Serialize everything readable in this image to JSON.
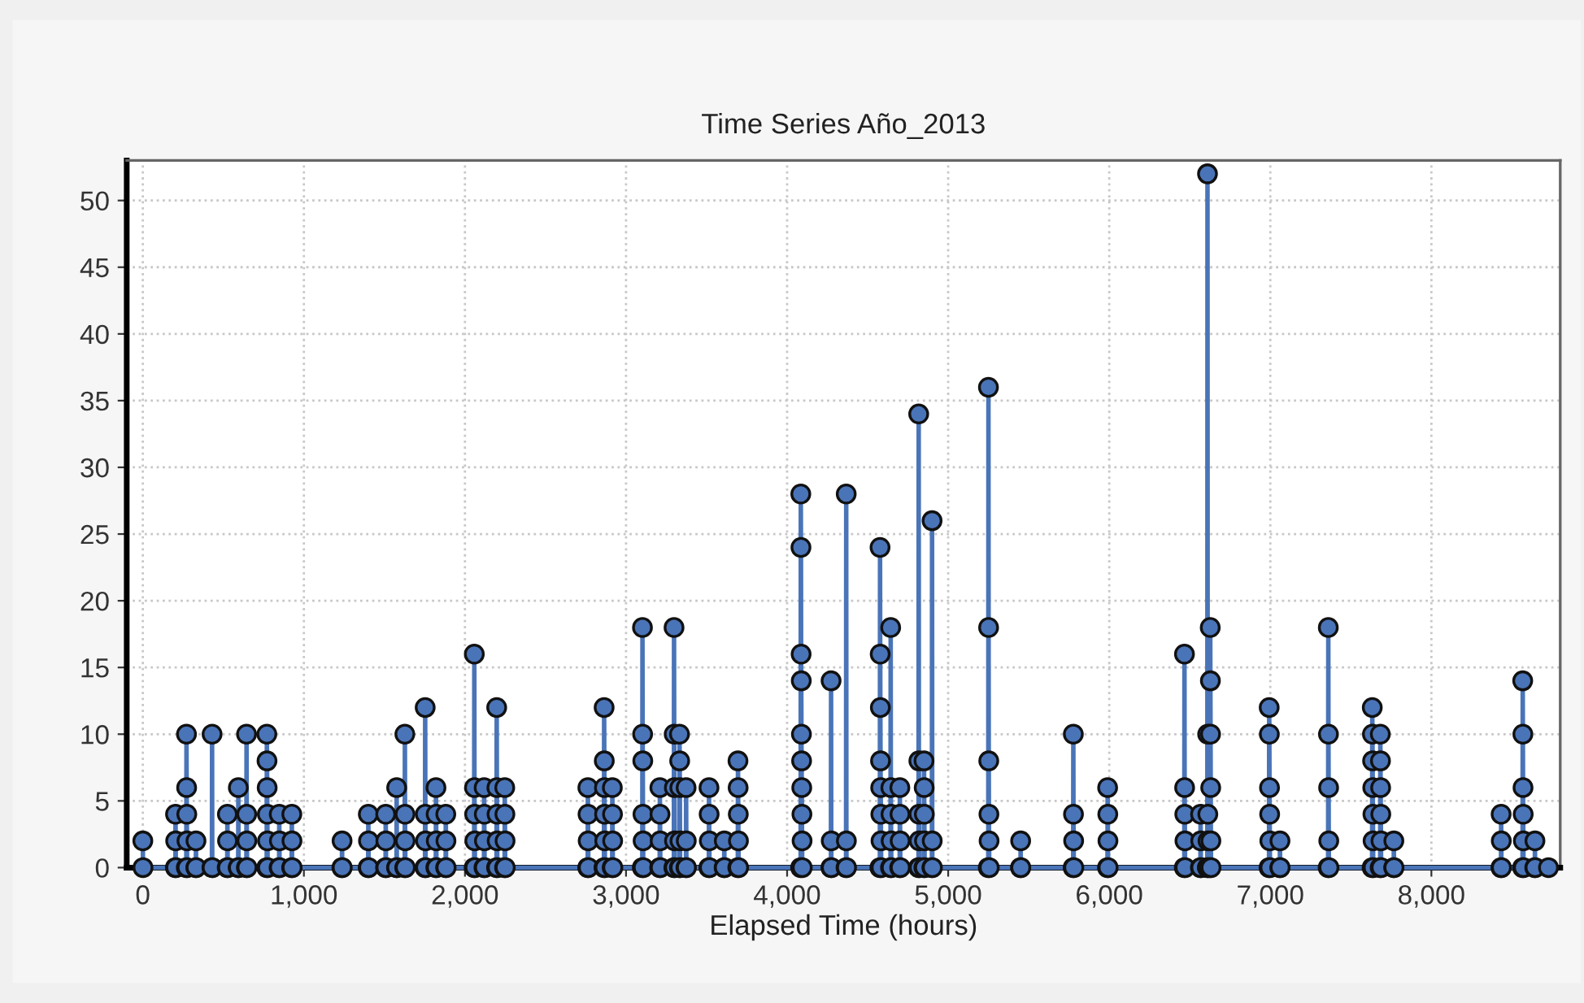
{
  "chart_data": {
    "type": "line",
    "title": "Time Series Año_2013",
    "xlabel": "Elapsed Time (hours)",
    "xlim": [
      -100,
      8800
    ],
    "ylim": [
      0,
      53
    ],
    "xticks": [
      0,
      {
        "value": 1000,
        "label": "1,000"
      },
      {
        "value": 2000,
        "label": "2,000"
      },
      {
        "value": 3000,
        "label": "3,000"
      },
      {
        "value": 4000,
        "label": "4,000"
      },
      {
        "value": 5000,
        "label": "5,000"
      },
      {
        "value": 6000,
        "label": "6,000"
      },
      {
        "value": 7000,
        "label": "7,000"
      },
      {
        "value": 8000,
        "label": "8,000"
      }
    ],
    "yticks": [
      0,
      5,
      10,
      15,
      20,
      25,
      30,
      35,
      40,
      45,
      50
    ],
    "grid": true,
    "marker": "circle",
    "line_style": "solid",
    "series": [
      {
        "color": "#4a74b8",
        "x": [
          0,
          1,
          202,
          203,
          204,
          205,
          270,
          271,
          272,
          273,
          274,
          275,
          329,
          330,
          331,
          429,
          430,
          431,
          524,
          525,
          526,
          527,
          592,
          593,
          594,
          643,
          644,
          645,
          646,
          647,
          769,
          770,
          771,
          772,
          773,
          774,
          775,
          846,
          847,
          848,
          849,
          924,
          925,
          926,
          927,
          1236,
          1237,
          1238,
          1399,
          1400,
          1401,
          1402,
          1507,
          1508,
          1509,
          1510,
          1575,
          1576,
          1577,
          1626,
          1627,
          1628,
          1629,
          1630,
          1752,
          1753,
          1754,
          1755,
          1756,
          1819,
          1820,
          1821,
          1822,
          1823,
          1880,
          1881,
          1882,
          1883,
          2057,
          2058,
          2059,
          2060,
          2061,
          2062,
          2118,
          2119,
          2120,
          2121,
          2122,
          2196,
          2197,
          2198,
          2199,
          2200,
          2201,
          2246,
          2247,
          2248,
          2249,
          2250,
          2762,
          2763,
          2764,
          2765,
          2766,
          2863,
          2864,
          2865,
          2866,
          2867,
          2868,
          2869,
          2914,
          2915,
          2916,
          2917,
          2918,
          3101,
          3102,
          3103,
          3104,
          3105,
          3106,
          3107,
          3209,
          3210,
          3211,
          3212,
          3213,
          3297,
          3298,
          3299,
          3300,
          3301,
          3302,
          3331,
          3332,
          3333,
          3334,
          3335,
          3336,
          3372,
          3373,
          3374,
          3375,
          3514,
          3515,
          3516,
          3517,
          3518,
          3609,
          3610,
          3611,
          3694,
          3695,
          3696,
          3697,
          3698,
          3699,
          4084,
          4085,
          4086,
          4087,
          4088,
          4089,
          4090,
          4091,
          4092,
          4093,
          4094,
          4272,
          4273,
          4274,
          4275,
          4366,
          4367,
          4368,
          4369,
          4576,
          4577,
          4578,
          4579,
          4580,
          4581,
          4582,
          4583,
          4584,
          4642,
          4643,
          4644,
          4645,
          4646,
          4647,
          4699,
          4700,
          4701,
          4702,
          4703,
          4816,
          4817,
          4818,
          4819,
          4820,
          4821,
          4849,
          4850,
          4851,
          4852,
          4853,
          4854,
          4899,
          4900,
          4901,
          4902,
          5249,
          5250,
          5251,
          5252,
          5253,
          5254,
          5255,
          5449,
          5450,
          5451,
          5776,
          5777,
          5778,
          5779,
          5780,
          5989,
          5990,
          5991,
          5992,
          5993,
          6466,
          6467,
          6468,
          6469,
          6470,
          6471,
          6566,
          6567,
          6568,
          6569,
          6609,
          6610,
          6611,
          6612,
          6613,
          6614,
          6626,
          6627,
          6628,
          6629,
          6630,
          6631,
          6632,
          6992,
          6993,
          6994,
          6995,
          6996,
          6997,
          6998,
          7059,
          7060,
          7061,
          7359,
          7360,
          7361,
          7362,
          7363,
          7364,
          7632,
          7633,
          7634,
          7635,
          7636,
          7637,
          7638,
          7639,
          7682,
          7683,
          7684,
          7685,
          7686,
          7687,
          7688,
          7766,
          7767,
          7768,
          8432,
          8433,
          8434,
          8435,
          8566,
          8567,
          8568,
          8569,
          8570,
          8571,
          8572,
          8642,
          8643,
          8644,
          8727
        ],
        "values": [
          2,
          0,
          0,
          4,
          2,
          0,
          0,
          10,
          6,
          4,
          2,
          0,
          0,
          2,
          0,
          0,
          10,
          0,
          0,
          4,
          2,
          0,
          0,
          6,
          0,
          0,
          10,
          4,
          2,
          0,
          0,
          10,
          8,
          6,
          4,
          2,
          0,
          0,
          4,
          2,
          0,
          0,
          4,
          2,
          0,
          0,
          2,
          0,
          0,
          4,
          2,
          0,
          0,
          4,
          2,
          0,
          0,
          6,
          0,
          0,
          10,
          4,
          2,
          0,
          0,
          12,
          4,
          2,
          0,
          0,
          6,
          4,
          2,
          0,
          0,
          4,
          2,
          0,
          0,
          16,
          6,
          4,
          2,
          0,
          0,
          6,
          4,
          2,
          0,
          0,
          12,
          6,
          4,
          2,
          0,
          0,
          6,
          4,
          2,
          0,
          0,
          6,
          4,
          2,
          0,
          0,
          12,
          8,
          6,
          4,
          2,
          0,
          0,
          6,
          4,
          2,
          0,
          0,
          18,
          10,
          8,
          4,
          2,
          0,
          0,
          6,
          4,
          2,
          0,
          0,
          18,
          10,
          6,
          2,
          0,
          0,
          10,
          8,
          6,
          2,
          0,
          0,
          6,
          2,
          0,
          0,
          6,
          4,
          2,
          0,
          0,
          2,
          0,
          0,
          8,
          6,
          4,
          2,
          0,
          0,
          28,
          24,
          16,
          14,
          10,
          8,
          6,
          4,
          2,
          0,
          0,
          14,
          2,
          0,
          0,
          28,
          2,
          0,
          0,
          24,
          16,
          12,
          8,
          6,
          4,
          2,
          0,
          0,
          18,
          6,
          4,
          2,
          0,
          0,
          6,
          4,
          2,
          0,
          0,
          34,
          8,
          4,
          2,
          0,
          0,
          8,
          6,
          4,
          2,
          0,
          0,
          26,
          2,
          0,
          0,
          36,
          18,
          8,
          4,
          2,
          0,
          0,
          2,
          0,
          0,
          10,
          4,
          2,
          0,
          0,
          6,
          4,
          2,
          0,
          0,
          16,
          6,
          4,
          2,
          0,
          0,
          4,
          2,
          0,
          0,
          52,
          10,
          4,
          2,
          0,
          0,
          18,
          14,
          10,
          6,
          2,
          0,
          0,
          12,
          10,
          6,
          4,
          2,
          0,
          0,
          2,
          0,
          0,
          18,
          10,
          6,
          2,
          0,
          0,
          12,
          10,
          8,
          6,
          4,
          2,
          0,
          0,
          10,
          8,
          6,
          4,
          2,
          0,
          0,
          2,
          0,
          0,
          4,
          2,
          0,
          0,
          14,
          10,
          6,
          4,
          2,
          0,
          0,
          2,
          0,
          0
        ]
      }
    ]
  }
}
